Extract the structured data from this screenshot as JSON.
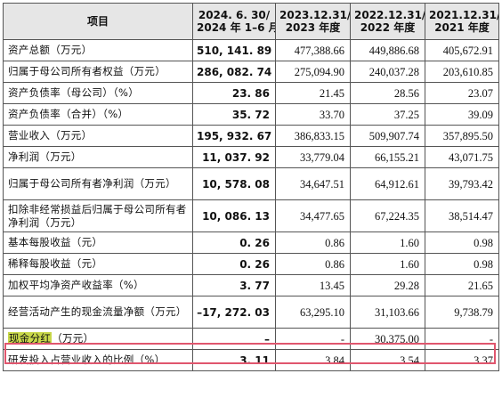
{
  "header": {
    "item": "项目",
    "col1_line1": "2024. 6. 30/",
    "col1_line2": "2024 年 1–6 月",
    "col2_line1": "2023.12.31/",
    "col2_line2": "2023 年度",
    "col3_line1": "2022.12.31/",
    "col3_line2": "2022 年度",
    "col4_line1": "2021.12.31/",
    "col4_line2": "2021 年度"
  },
  "rows": [
    {
      "label": "资产总额（万元）",
      "c1": "510, 141. 89",
      "c2": "477,388.66",
      "c3": "449,886.68",
      "c4": "405,672.91"
    },
    {
      "label": "归属于母公司所有者权益（万元）",
      "c1": "286, 082. 74",
      "c2": "275,094.90",
      "c3": "240,037.28",
      "c4": "203,610.85"
    },
    {
      "label": "资产负债率（母公司）（%）",
      "c1": "23. 86",
      "c2": "21.45",
      "c3": "28.56",
      "c4": "23.07"
    },
    {
      "label": "资产负债率（合并）（%）",
      "c1": "35. 72",
      "c2": "33.70",
      "c3": "37.25",
      "c4": "39.09"
    },
    {
      "label": "营业收入（万元）",
      "c1": "195, 932. 67",
      "c2": "386,833.15",
      "c3": "509,907.74",
      "c4": "357,895.50"
    },
    {
      "label": "净利润（万元）",
      "c1": "11, 037. 92",
      "c2": "33,779.04",
      "c3": "66,155.21",
      "c4": "43,071.75"
    },
    {
      "label": "归属于母公司所有者净利润（万元）",
      "c1": "10, 578. 08",
      "c2": "34,647.51",
      "c3": "64,912.61",
      "c4": "39,793.42"
    },
    {
      "label": "扣除非经常损益后归属于母公司所有者净利润（万元）",
      "c1": "10, 086. 13",
      "c2": "34,477.65",
      "c3": "67,224.35",
      "c4": "38,514.47"
    },
    {
      "label": "基本每股收益（元）",
      "c1": "0. 26",
      "c2": "0.86",
      "c3": "1.60",
      "c4": "0.98"
    },
    {
      "label": "稀释每股收益（元）",
      "c1": "0. 26",
      "c2": "0.86",
      "c3": "1.60",
      "c4": "0.98"
    },
    {
      "label": "加权平均净资产收益率（%）",
      "c1": "3. 77",
      "c2": "13.45",
      "c3": "29.28",
      "c4": "21.65"
    },
    {
      "label": "经营活动产生的现金流量净额（万元）",
      "c1": "–17, 272. 03",
      "c2": "63,295.10",
      "c3": "31,103.66",
      "c4": "9,738.79"
    },
    {
      "label_highlight": "现金分红",
      "label_rest": "（万元）",
      "c1": "–",
      "c2": "-",
      "c3": "30,375.00",
      "c4": "-"
    },
    {
      "label": "研发投入占营业收入的比例（%）",
      "c1": "3. 11",
      "c2": "3.84",
      "c3": "3.54",
      "c4": "3.37"
    }
  ],
  "highlight_color": "#c8d84a",
  "box_color": "#e0566e"
}
